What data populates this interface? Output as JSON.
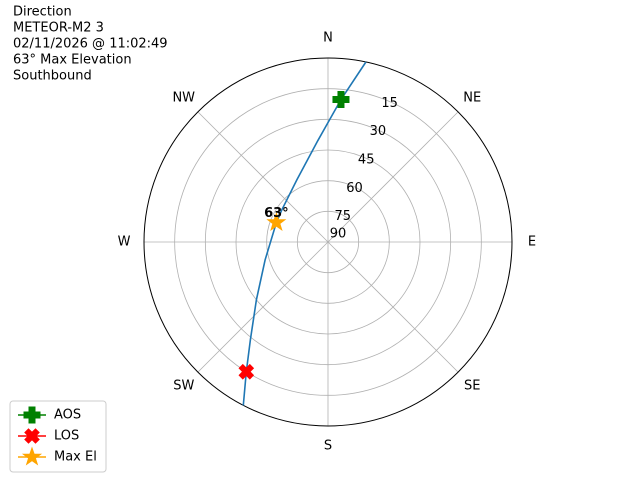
{
  "chart_data": {
    "type": "polar",
    "info_lines": [
      "Direction",
      "METEOR-M2 3",
      "02/11/2026 @ 11:02:49",
      "63° Max Elevation",
      "Southbound"
    ],
    "rlim": [
      90,
      0
    ],
    "rticks": [
      15,
      30,
      45,
      60,
      75,
      90
    ],
    "thetaticks": [
      {
        "value": 0,
        "label": "N"
      },
      {
        "value": 45,
        "label": "NE"
      },
      {
        "value": 90,
        "label": "E"
      },
      {
        "value": 135,
        "label": "SE"
      },
      {
        "value": 180,
        "label": "S"
      },
      {
        "value": 225,
        "label": "SW"
      },
      {
        "value": 270,
        "label": "W"
      },
      {
        "value": 315,
        "label": "NW"
      }
    ],
    "grid": true,
    "track": {
      "color": "#1f77b4",
      "azimuth": [
        11.9,
        5.2,
        354.4,
        333.4,
        304.8,
        290.7,
        254.1,
        231.1,
        218.5,
        212.2,
        207.4
      ],
      "elevation": [
        0,
        20,
        40,
        56,
        62.5,
        63,
        58,
        45,
        29,
        15,
        0
      ]
    },
    "markers": [
      {
        "name": "AOS",
        "color": "green",
        "marker": "plus",
        "azimuth": 5.2,
        "elevation": 20
      },
      {
        "name": "LOS",
        "color": "red",
        "marker": "x",
        "azimuth": 212.2,
        "elevation": 15
      },
      {
        "name": "Max El",
        "color": "orange",
        "marker": "star",
        "azimuth": 290.7,
        "elevation": 63,
        "annotation": "63°"
      }
    ],
    "legend": "lower left"
  }
}
